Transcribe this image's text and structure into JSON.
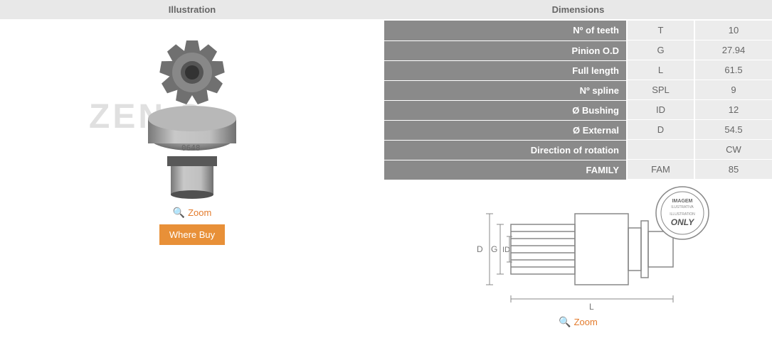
{
  "left": {
    "header": "Illustration",
    "watermark": "ZEN S.",
    "zoom_label": "Zoom",
    "where_buy_label": "Where Buy"
  },
  "right": {
    "header": "Dimensions",
    "rows": [
      {
        "label": "Nº of teeth",
        "code": "T",
        "value": "10"
      },
      {
        "label": "Pinion O.D",
        "code": "G",
        "value": "27.94"
      },
      {
        "label": "Full length",
        "code": "L",
        "value": "61.5"
      },
      {
        "label": "Nº spline",
        "code": "SPL",
        "value": "9"
      },
      {
        "label": "Ø Bushing",
        "code": "ID",
        "value": "12"
      },
      {
        "label": "Ø External",
        "code": "D",
        "value": "54.5"
      },
      {
        "label": "Direction of rotation",
        "code": "",
        "value": "CW"
      },
      {
        "label": "FAMILY",
        "code": "FAM",
        "value": "85"
      }
    ],
    "zoom_label": "Zoom",
    "diagram_labels": {
      "D": "D",
      "G": "G",
      "ID": "ID",
      "L": "L"
    },
    "badge": {
      "line1": "IMAGEM",
      "line2": "ILUSTRATIVA",
      "line3": "ILLUSTRATION",
      "line4": "ONLY"
    }
  },
  "colors": {
    "accent": "#e37b2c",
    "button": "#e89038",
    "header_bg": "#e8e8e8",
    "label_bg": "#8a8a8a",
    "cell_bg": "#ececec"
  }
}
